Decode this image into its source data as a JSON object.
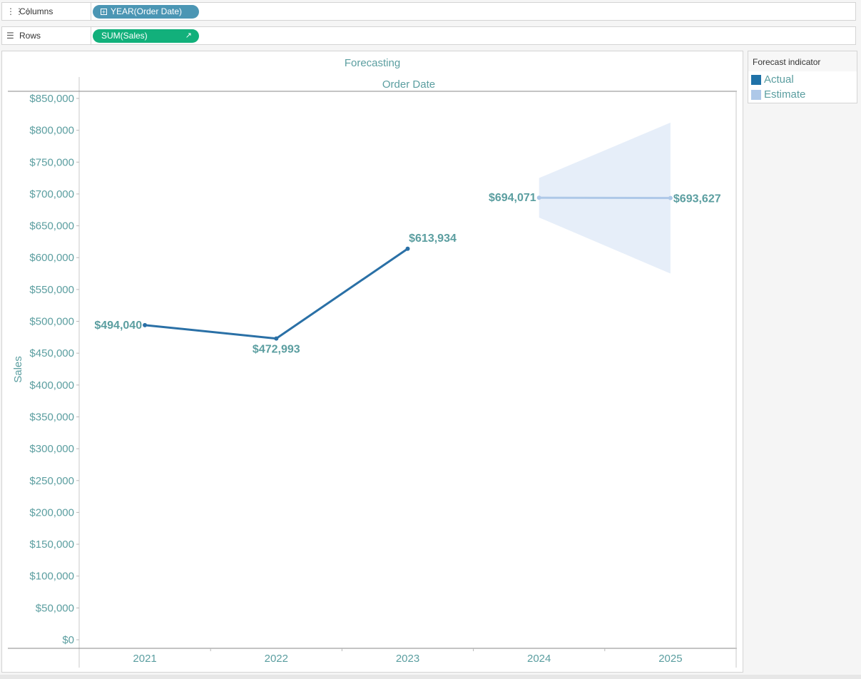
{
  "shelves": {
    "columns": {
      "label": "Columns",
      "icon": "columns-shelf-icon",
      "pill": "YEAR(Order Date)"
    },
    "rows": {
      "label": "Rows",
      "icon": "rows-shelf-icon",
      "pill": "SUM(Sales)"
    }
  },
  "legend": {
    "title": "Forecast indicator",
    "items": [
      {
        "label": "Actual",
        "color": "#1f72a8"
      },
      {
        "label": "Estimate",
        "color": "#aec8e8"
      }
    ]
  },
  "colors": {
    "text": "#5b9ea0",
    "actual": "#2a70a6",
    "estimate": "#aec8e8",
    "band": "#e6eef9"
  },
  "chart_data": {
    "type": "line",
    "title": "Forecasting",
    "xlabel": "Order Date",
    "ylabel": "Sales",
    "ylim": [
      0,
      850000
    ],
    "yticks": [
      0,
      50000,
      100000,
      150000,
      200000,
      250000,
      300000,
      350000,
      400000,
      450000,
      500000,
      550000,
      600000,
      650000,
      700000,
      750000,
      800000,
      850000
    ],
    "ytick_labels": [
      "$0",
      "$50,000",
      "$100,000",
      "$150,000",
      "$200,000",
      "$250,000",
      "$300,000",
      "$350,000",
      "$400,000",
      "$450,000",
      "$500,000",
      "$550,000",
      "$600,000",
      "$650,000",
      "$700,000",
      "$750,000",
      "$800,000",
      "$850,000"
    ],
    "categories": [
      "2021",
      "2022",
      "2023",
      "2024",
      "2025"
    ],
    "series": [
      {
        "name": "Actual",
        "x": [
          "2021",
          "2022",
          "2023"
        ],
        "values": [
          494040,
          472993,
          613934
        ],
        "labels": [
          "$494,040",
          "$472,993",
          "$613,934"
        ]
      },
      {
        "name": "Estimate",
        "x": [
          "2024",
          "2025"
        ],
        "values": [
          694071,
          693627
        ],
        "labels": [
          "$694,071",
          "$693,627"
        ]
      }
    ],
    "prediction_interval": {
      "x": [
        "2024",
        "2025"
      ],
      "upper": [
        725000,
        812000
      ],
      "lower": [
        663000,
        575000
      ]
    },
    "grid": false,
    "legend_position": "right"
  }
}
